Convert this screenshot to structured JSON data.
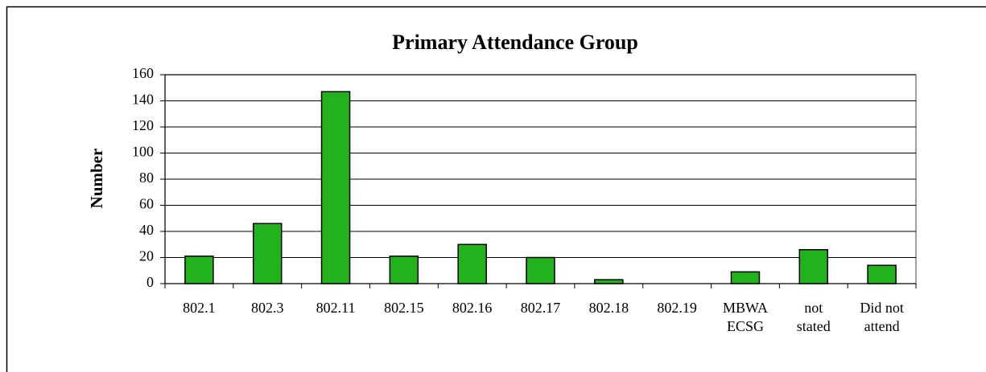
{
  "chart_data": {
    "type": "bar",
    "title": "Primary Attendance Group",
    "y_label": "Number",
    "categories": [
      "802.1",
      "802.3",
      "802.11",
      "802.15",
      "802.16",
      "802.17",
      "802.18",
      "802.19",
      [
        "MBWA",
        "ECSG"
      ],
      [
        "not",
        "stated"
      ],
      [
        "Did not",
        "attend"
      ]
    ],
    "values": [
      21,
      46,
      147,
      21,
      30,
      20,
      3,
      0,
      9,
      26,
      14
    ],
    "color": "#22b21c",
    "ylim": [
      0,
      160
    ],
    "yticks": [
      0,
      20,
      40,
      60,
      80,
      100,
      120,
      140,
      160
    ],
    "grid": true
  }
}
